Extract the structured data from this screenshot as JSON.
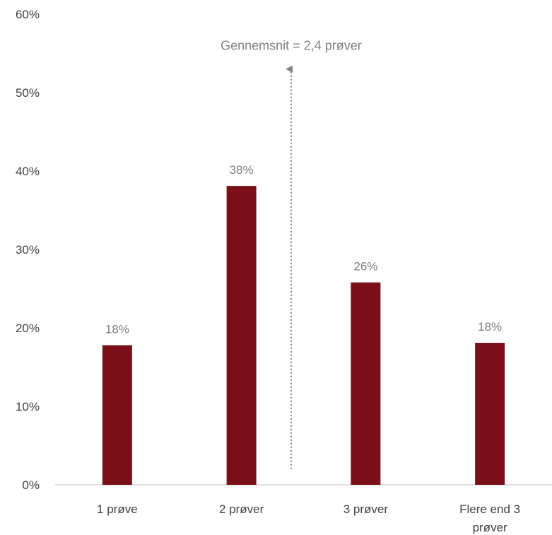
{
  "chart_data": {
    "type": "bar",
    "categories": [
      "1 prøve",
      "2 prøver",
      "3 prøver",
      "Flere end 3 prøver"
    ],
    "category_lines": [
      [
        "1 prøve"
      ],
      [
        "2 prøver"
      ],
      [
        "3 prøver"
      ],
      [
        "Flere end 3",
        "prøver"
      ]
    ],
    "values": [
      17.8,
      38.1,
      25.8,
      18.1
    ],
    "data_labels": [
      "18%",
      "38%",
      "26%",
      "18%"
    ],
    "yticks": [
      0,
      10,
      20,
      30,
      40,
      50,
      60
    ],
    "ytick_labels": [
      "0%",
      "10%",
      "20%",
      "30%",
      "40%",
      "50%",
      "60%"
    ],
    "ylim": [
      0,
      60
    ],
    "grid": false,
    "bar_color": "#7b1019",
    "annotation": {
      "text": "Gennemsnit = 2,4 prøver",
      "x": 2.4,
      "y_from": 2,
      "y_to": 53,
      "color": "#7f7f7f"
    }
  }
}
